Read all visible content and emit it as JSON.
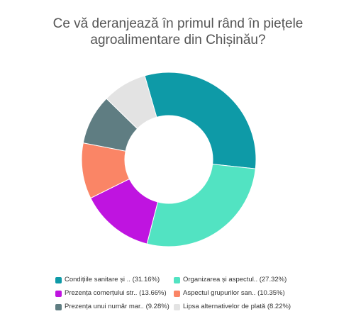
{
  "chart_data": {
    "type": "pie",
    "title": "Ce vă deranjează în primul rând în piețele agroalimentare din Chișinău?",
    "title_lines": [
      "Ce vă deranjează în primul rând în piețele",
      "agroalimentare din Chișinău?"
    ],
    "donut": true,
    "legend_position": "bottom",
    "series": [
      {
        "name": "Condițiile sanitare și ..",
        "value": 31.16,
        "label": "Condițiile sanitare și .. (31.16%)",
        "color": "#0e9aa7"
      },
      {
        "name": "Organizarea și aspectul..",
        "value": 27.32,
        "label": "Organizarea și aspectul.. (27.32%)",
        "color": "#52e3c2"
      },
      {
        "name": "Prezența comerțului str..",
        "value": 13.66,
        "label": "Prezența comerțului str.. (13.66%)",
        "color": "#bf14e0"
      },
      {
        "name": "Aspectul grupurilor san..",
        "value": 10.35,
        "label": "Aspectul grupurilor san.. (10.35%)",
        "color": "#fa8566"
      },
      {
        "name": "Prezența unui număr mar..",
        "value": 9.28,
        "label": "Prezența unui număr mar.. (9.28%)",
        "color": "#5f7d82"
      },
      {
        "name": "Lipsa alternativelor de plată",
        "value": 8.22,
        "label": "Lipsa alternativelor de plată (8.22%)",
        "color": "#e3e3e3"
      }
    ]
  }
}
